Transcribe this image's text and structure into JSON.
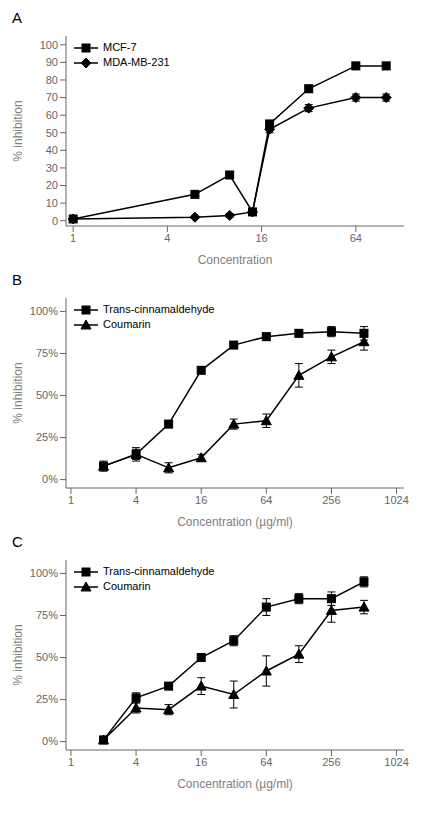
{
  "chart_data": [
    {
      "type": "line",
      "title": "A",
      "x_label": "Concentration",
      "y_label": "% inhibition",
      "log": "x",
      "xlim": [
        0.9,
        130
      ],
      "xticks": [
        1,
        4,
        16,
        64
      ],
      "ylim": [
        -3,
        105
      ],
      "yticks": [
        0,
        10,
        20,
        30,
        40,
        50,
        60,
        70,
        80,
        90,
        100
      ],
      "legend": "upper left",
      "grid": false,
      "series": [
        {
          "name": "MCF-7",
          "marker": "square",
          "color": "#000000",
          "x": [
            1,
            6,
            10,
            14,
            18,
            32,
            64,
            100
          ],
          "values": [
            1,
            15,
            26,
            5,
            55,
            75,
            88,
            88
          ],
          "errors": [
            0.5,
            1,
            1.5,
            1,
            2,
            2,
            2,
            2
          ]
        },
        {
          "name": "MDA-MB-231",
          "marker": "diamond",
          "color": "#000000",
          "x": [
            1,
            6,
            10,
            14,
            18,
            32,
            64,
            100
          ],
          "values": [
            1,
            2,
            3,
            5,
            52,
            64,
            70,
            70
          ],
          "errors": [
            0.5,
            0.5,
            1,
            1,
            2,
            2,
            2,
            2
          ]
        }
      ]
    },
    {
      "type": "line",
      "title": "B",
      "x_label": "Concentration (µg/ml)",
      "y_label": "% inhibition",
      "log": "x",
      "xlim": [
        0.9,
        1200
      ],
      "xticks": [
        1,
        4,
        16,
        64,
        256,
        1024
      ],
      "ylim": [
        -5,
        108
      ],
      "yticks": [
        {
          "value": 0,
          "label": "0%"
        },
        {
          "value": 25,
          "label": "25%"
        },
        {
          "value": 50,
          "label": "50%"
        },
        {
          "value": 75,
          "label": "75%"
        },
        {
          "value": 100,
          "label": "100%"
        }
      ],
      "legend": "upper left",
      "grid": false,
      "series": [
        {
          "name": "Trans-cinnamaldehyde",
          "marker": "square",
          "color": "#000000",
          "x": [
            2,
            4,
            8,
            16,
            32,
            64,
            128,
            256,
            512
          ],
          "values": [
            8,
            15,
            33,
            65,
            80,
            85,
            87,
            88,
            87
          ],
          "errors": [
            2,
            3,
            2,
            2,
            2,
            2,
            2,
            3,
            4
          ]
        },
        {
          "name": "Coumarin",
          "marker": "triangle",
          "color": "#000000",
          "x": [
            2,
            4,
            8,
            16,
            32,
            64,
            128,
            256,
            512
          ],
          "values": [
            8,
            15,
            7,
            13,
            33,
            35,
            62,
            73,
            82
          ],
          "errors": [
            3,
            4,
            3,
            2,
            3,
            4,
            7,
            4,
            5
          ]
        }
      ]
    },
    {
      "type": "line",
      "title": "C",
      "x_label": "Concentration (µg/ml)",
      "y_label": "% inhibition",
      "log": "x",
      "xlim": [
        0.9,
        1200
      ],
      "xticks": [
        1,
        4,
        16,
        64,
        256,
        1024
      ],
      "ylim": [
        -5,
        108
      ],
      "yticks": [
        {
          "value": 0,
          "label": "0%"
        },
        {
          "value": 25,
          "label": "25%"
        },
        {
          "value": 50,
          "label": "50%"
        },
        {
          "value": 75,
          "label": "75%"
        },
        {
          "value": 100,
          "label": "100%"
        }
      ],
      "legend": "upper left",
      "grid": false,
      "series": [
        {
          "name": "Trans-cinnamaldehyde",
          "marker": "square",
          "color": "#000000",
          "x": [
            2,
            4,
            8,
            16,
            32,
            64,
            128,
            256,
            512
          ],
          "values": [
            1,
            26,
            33,
            50,
            60,
            80,
            85,
            85,
            95
          ],
          "errors": [
            2,
            3,
            2,
            2,
            3,
            5,
            3,
            4,
            3
          ]
        },
        {
          "name": "Coumarin",
          "marker": "triangle",
          "color": "#000000",
          "x": [
            2,
            4,
            8,
            16,
            32,
            64,
            128,
            256,
            512
          ],
          "values": [
            1,
            20,
            19,
            33,
            28,
            42,
            52,
            78,
            80
          ],
          "errors": [
            2,
            3,
            3,
            5,
            8,
            9,
            5,
            7,
            4
          ]
        }
      ]
    }
  ]
}
